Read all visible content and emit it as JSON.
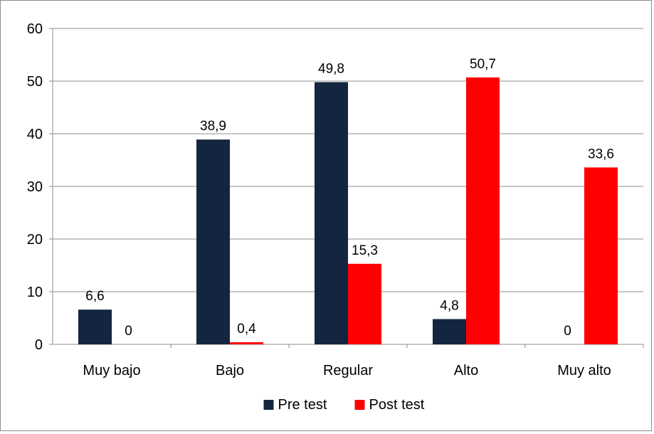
{
  "chart_data": {
    "type": "bar",
    "title": "",
    "xlabel": "",
    "ylabel": "",
    "categories": [
      "Muy bajo",
      "Bajo",
      "Regular",
      "Alto",
      "Muy alto"
    ],
    "series": [
      {
        "name": "Pre test",
        "color": "#14253f",
        "values": [
          6.6,
          38.9,
          49.8,
          4.8,
          0
        ],
        "value_labels": [
          "6,6",
          "38,9",
          "49,8",
          "4,8",
          "0"
        ]
      },
      {
        "name": "Post test",
        "color": "#ff0000",
        "values": [
          0,
          0.4,
          15.3,
          50.7,
          33.6
        ],
        "value_labels": [
          "0",
          "0,4",
          "15,3",
          "50,7",
          "33,6"
        ]
      }
    ],
    "ylim": [
      0,
      60
    ],
    "yticks": [
      0,
      10,
      20,
      30,
      40,
      50,
      60
    ],
    "grid": true,
    "legend_position": "bottom"
  }
}
